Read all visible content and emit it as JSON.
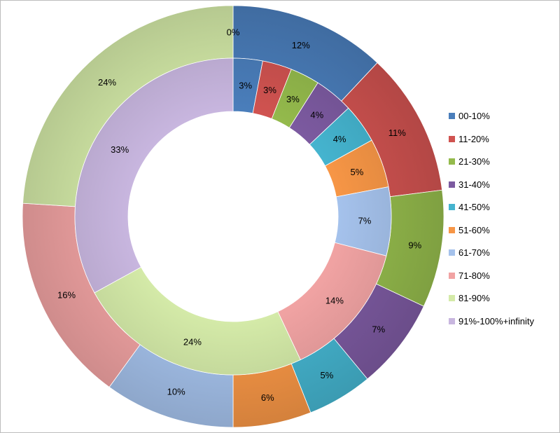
{
  "chart_data": {
    "type": "pie",
    "style": "donut",
    "categories": [
      "00-10%",
      "11-20%",
      "21-30%",
      "31-40%",
      "41-50%",
      "51-60%",
      "61-70%",
      "71-80%",
      "81-90%",
      "91%-100%+infinity"
    ],
    "series": [
      {
        "ring": "outer",
        "values": [
          12,
          11,
          9,
          7,
          5,
          6,
          10,
          16,
          24,
          0
        ],
        "labels": [
          "12%",
          "11%",
          "9%",
          "7%",
          "5%",
          "6%",
          "10%",
          "16%",
          "24%",
          "0%"
        ]
      },
      {
        "ring": "inner",
        "values": [
          3,
          3,
          3,
          4,
          4,
          5,
          7,
          14,
          24,
          33
        ],
        "labels": [
          "3%",
          "3%",
          "3%",
          "4%",
          "4%",
          "5%",
          "7%",
          "14%",
          "24%",
          "33%"
        ]
      }
    ],
    "colors": [
      "#4a7ebb",
      "#d05350",
      "#94ba4c",
      "#7c5aa0",
      "#45b4cf",
      "#f79646",
      "#a5c2ec",
      "#f1a3a3",
      "#d4eaa8",
      "#c8b6df"
    ],
    "legend_position": "right",
    "grid": false
  }
}
